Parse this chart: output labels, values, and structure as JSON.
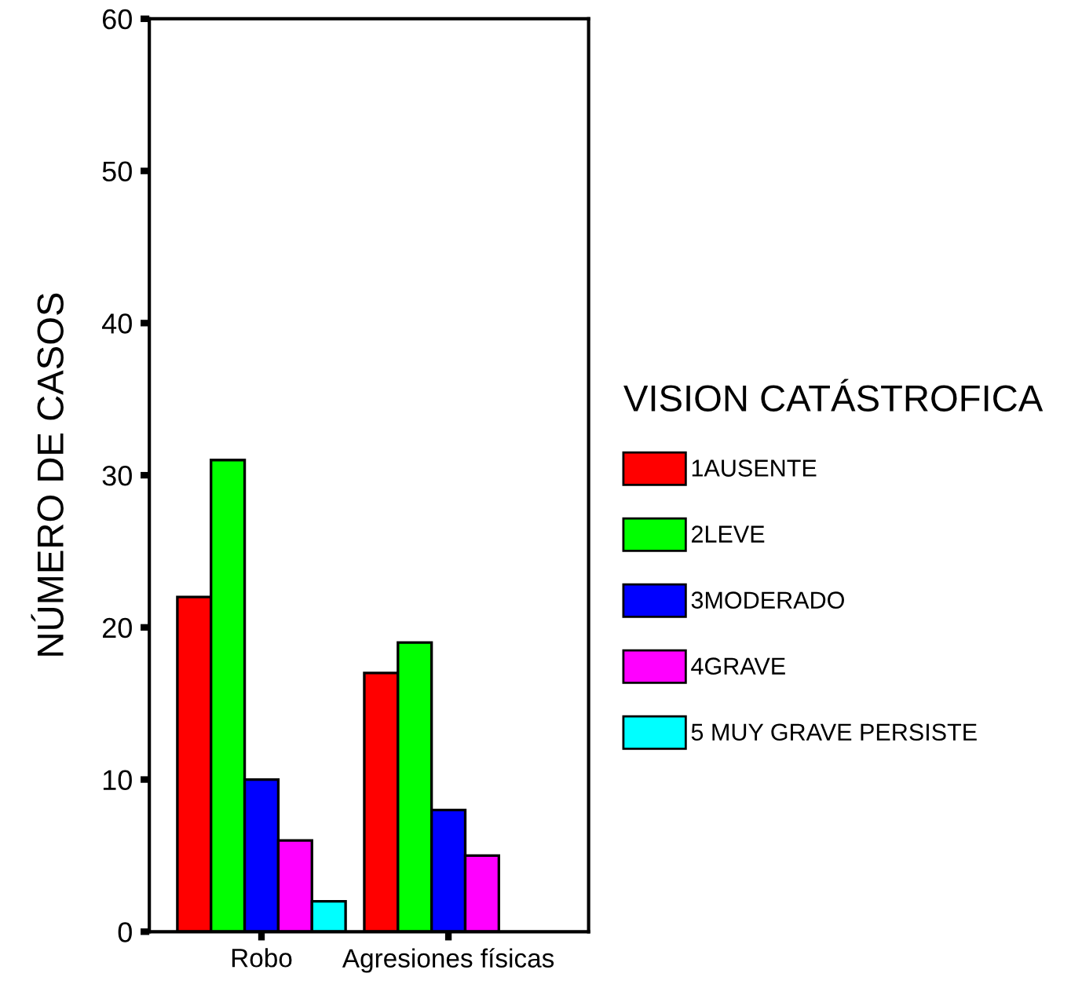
{
  "chart_data": {
    "type": "bar",
    "ylabel": "NÚMERO DE CASOS",
    "legend_title": "VISION CATÁSTROFICA",
    "categories": [
      "Robo",
      "Agresiones físicas"
    ],
    "series": [
      {
        "name": "1AUSENTE",
        "color": "#ff0000",
        "values": [
          22,
          17
        ]
      },
      {
        "name": "2LEVE",
        "color": "#00ff00",
        "values": [
          31,
          19
        ]
      },
      {
        "name": "3MODERADO",
        "color": "#0000ff",
        "values": [
          10,
          8
        ]
      },
      {
        "name": "4GRAVE",
        "color": "#ff00ff",
        "values": [
          6,
          5
        ]
      },
      {
        "name": "5 MUY GRAVE PERSISTE",
        "color": "#00ffff",
        "values": [
          2,
          null
        ]
      }
    ],
    "ylim": [
      0,
      60
    ],
    "yticks": [
      0,
      10,
      20,
      30,
      40,
      50,
      60
    ],
    "grid": false,
    "legend": "right"
  }
}
